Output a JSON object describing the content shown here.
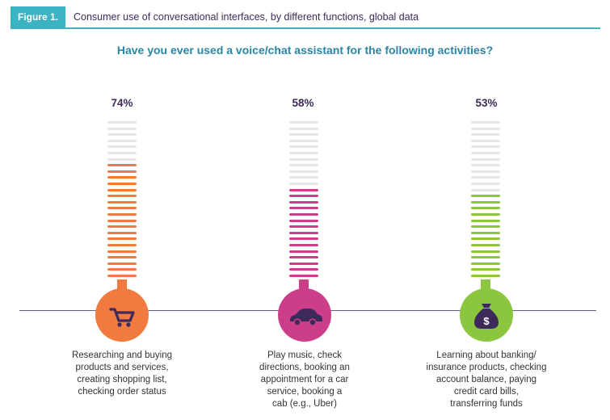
{
  "header": {
    "figure_tag": "Figure 1.",
    "figure_title": "Consumer use of conversational interfaces, by different functions, global data"
  },
  "chart_data": {
    "type": "bar",
    "title": "Have you ever used a voice/chat assistant for the following activities?",
    "value_unit": "%",
    "ylim": [
      0,
      100
    ],
    "items": [
      {
        "label": "74%",
        "value": 74,
        "color": "#f07a40",
        "icon": "shopping-cart-icon",
        "caption_lines": [
          "Researching and buying",
          "products and services,",
          "creating shopping list,",
          "checking order status"
        ]
      },
      {
        "label": "58%",
        "value": 58,
        "color": "#cc3e8a",
        "icon": "car-icon",
        "caption_lines": [
          "Play music, check",
          "directions, booking an",
          "appointment for a car",
          "service, booking a",
          "cab (e.g., Uber)"
        ]
      },
      {
        "label": "53%",
        "value": 53,
        "color": "#8cc63f",
        "icon": "money-bag-icon",
        "caption_lines": [
          "Learning about banking/",
          "insurance products, checking",
          "account balance, paying",
          "credit card bills,",
          "transferring funds"
        ]
      }
    ],
    "empty_color": "#e6e6e6"
  }
}
